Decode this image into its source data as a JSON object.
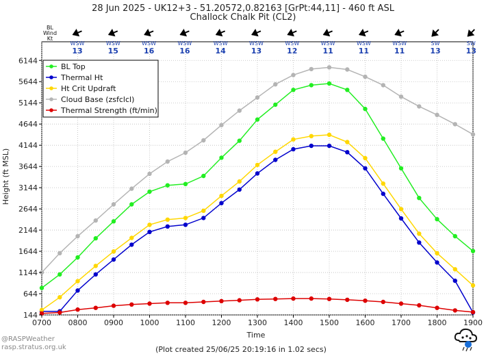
{
  "chart_data": {
    "type": "line",
    "title": "28 Jun 2025 - UK12+3 - 51.20572,0.82163 [GrPt:44,11]  - 460 ft ASL",
    "subtitle": "Challock Chalk Pit (CL2)",
    "xlabel": "Time",
    "ylabel": "Height (ft MSL)",
    "footer": "(Plot created 25/06/25 20:19:16 in 1.02 secs)",
    "watermark": [
      "@RASPWeather",
      "rasp.stratus.org.uk"
    ],
    "wind_label": [
      "BL",
      "Wind",
      "Kt"
    ],
    "wind": [
      {
        "dir": "WSW",
        "speed": "13",
        "bearing": 248
      },
      {
        "dir": "WSW",
        "speed": "15",
        "bearing": 248
      },
      {
        "dir": "WSW",
        "speed": "16",
        "bearing": 248
      },
      {
        "dir": "WSW",
        "speed": "16",
        "bearing": 248
      },
      {
        "dir": "WSW",
        "speed": "14",
        "bearing": 248
      },
      {
        "dir": "WSW",
        "speed": "13",
        "bearing": 248
      },
      {
        "dir": "WSW",
        "speed": "12",
        "bearing": 248
      },
      {
        "dir": "WSW",
        "speed": "11",
        "bearing": 248
      },
      {
        "dir": "WSW",
        "speed": "11",
        "bearing": 248
      },
      {
        "dir": "WSW",
        "speed": "11",
        "bearing": 248
      },
      {
        "dir": "SW",
        "speed": "13",
        "bearing": 225
      },
      {
        "dir": "SW",
        "speed": "13",
        "bearing": 225
      }
    ],
    "x_ticks": [
      "0700",
      "0800",
      "0900",
      "1000",
      "1100",
      "1200",
      "1300",
      "1400",
      "1500",
      "1600",
      "1700",
      "1800",
      "1900"
    ],
    "y_ticks": [
      144,
      644,
      1144,
      1644,
      2144,
      2644,
      3144,
      3644,
      4144,
      4644,
      5144,
      5644,
      6144
    ],
    "ylim": [
      144,
      6584
    ],
    "xlim": [
      7,
      19
    ],
    "grid": true,
    "legend_position": "top-left",
    "x": [
      7,
      7.5,
      8,
      8.5,
      9,
      9.5,
      10,
      10.5,
      11,
      11.5,
      12,
      12.5,
      13,
      13.5,
      14,
      14.5,
      15,
      15.5,
      16,
      16.5,
      17,
      17.5,
      18,
      18.5,
      19
    ],
    "series": [
      {
        "name": "BL Top",
        "color": "#22ee22",
        "values": [
          780,
          1100,
          1500,
          1950,
          2350,
          2750,
          3050,
          3200,
          3230,
          3420,
          3850,
          4250,
          4750,
          5100,
          5450,
          5560,
          5600,
          5450,
          5000,
          4300,
          3600,
          2900,
          2400,
          2000,
          1650
        ]
      },
      {
        "name": "Thermal Ht",
        "color": "#0000cc",
        "values": [
          230,
          230,
          720,
          1100,
          1450,
          1800,
          2100,
          2230,
          2270,
          2430,
          2780,
          3100,
          3480,
          3800,
          4050,
          4130,
          4130,
          3980,
          3600,
          3000,
          2420,
          1850,
          1380,
          950,
          200
        ]
      },
      {
        "name": "Ht Crit Updraft",
        "color": "#ffd700",
        "values": [
          260,
          560,
          940,
          1300,
          1640,
          1960,
          2270,
          2390,
          2430,
          2600,
          2950,
          3290,
          3680,
          3990,
          4280,
          4360,
          4390,
          4220,
          3840,
          3240,
          2640,
          2060,
          1600,
          1220,
          840
        ]
      },
      {
        "name": "Cloud Base (zsfclcl)",
        "color": "#b4b4b4",
        "values": [
          1144,
          1600,
          2000,
          2370,
          2750,
          3120,
          3470,
          3760,
          3970,
          4260,
          4620,
          4960,
          5270,
          5580,
          5800,
          5940,
          5980,
          5930,
          5760,
          5560,
          5290,
          5060,
          4860,
          4640,
          4400
        ]
      },
      {
        "name": "Thermal Strength (ft/min)",
        "color": "#dd0000",
        "values": [
          180,
          200,
          270,
          310,
          360,
          390,
          410,
          430,
          430,
          450,
          470,
          490,
          510,
          520,
          530,
          530,
          520,
          500,
          480,
          450,
          410,
          370,
          310,
          250,
          210
        ]
      }
    ]
  }
}
